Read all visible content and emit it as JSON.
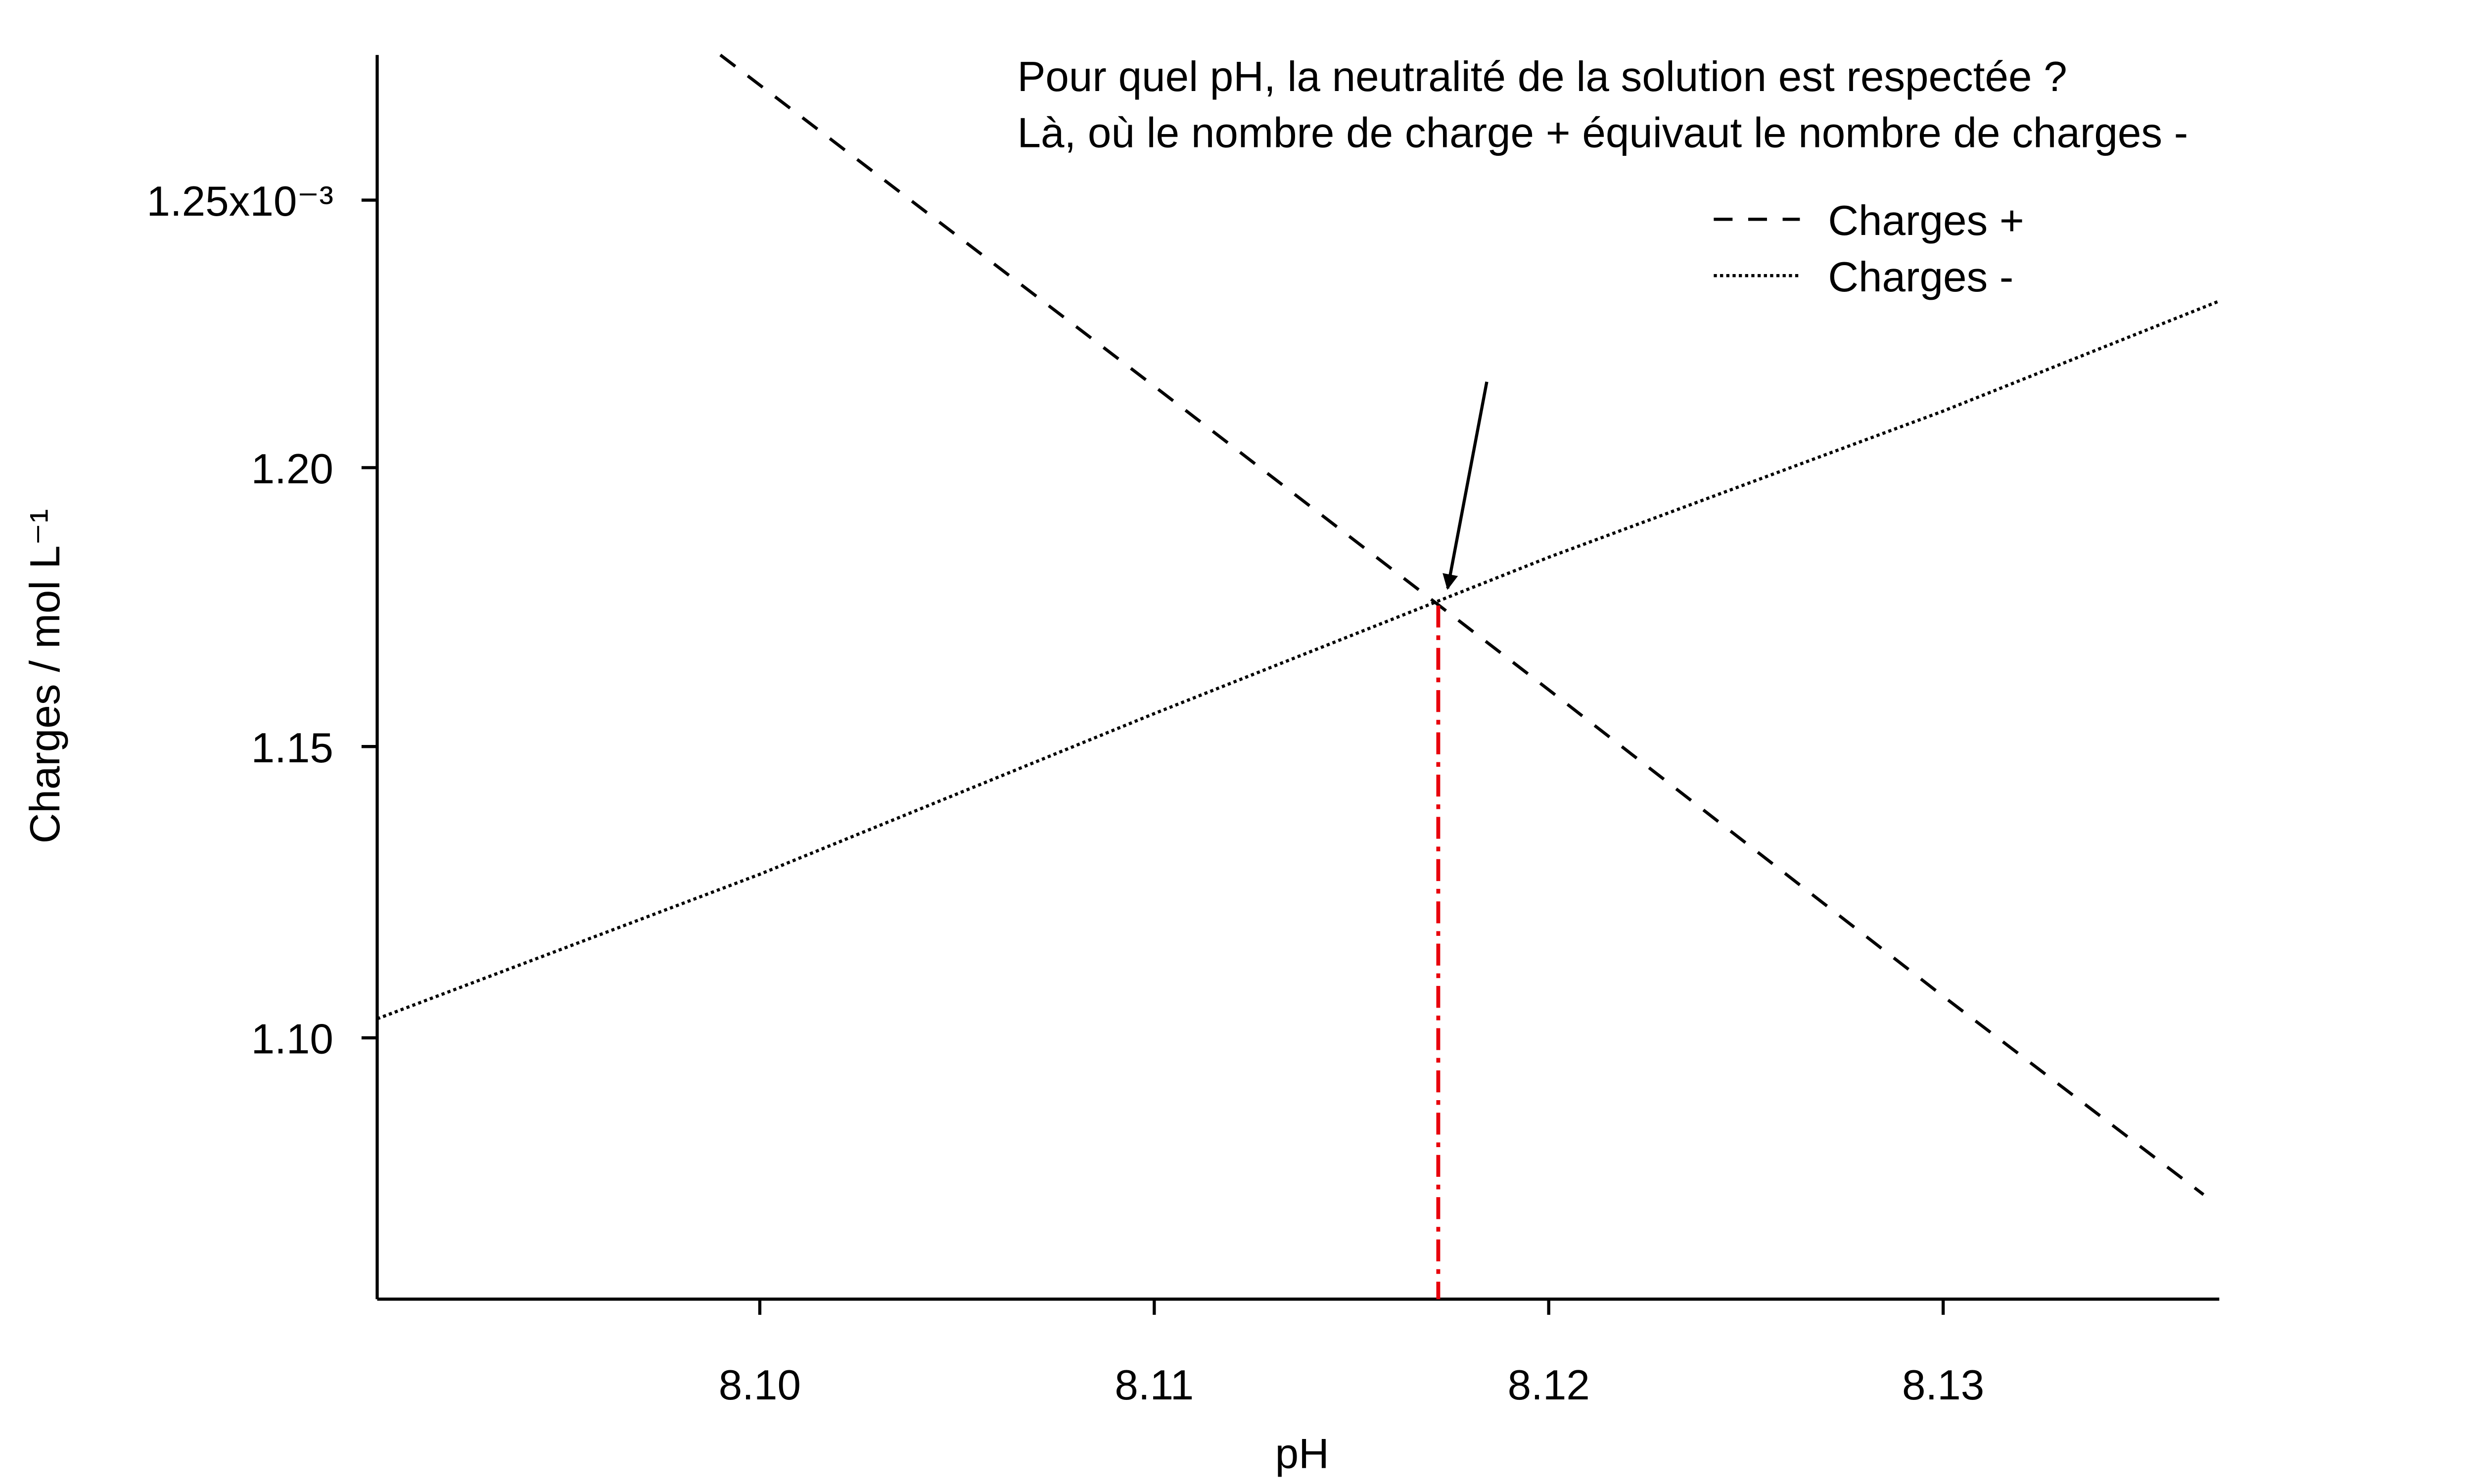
{
  "chart_data": {
    "type": "line",
    "annotations": [
      "Pour quel pH, la neutralité de la solution est respectée ?",
      "Là, où le nombre de charge + équivaut le nombre de charges -"
    ],
    "x_label": "pH",
    "y_label": "Charges / mol L⁻¹",
    "xlim": [
      8.0903,
      8.137
    ],
    "xticks": [
      {
        "value": 8.1,
        "label": "8.10"
      },
      8.11,
      8.12,
      8.13
    ],
    "ylim": [
      0.001057,
      0.001278
    ],
    "ylog": true,
    "yticks": [
      {
        "value": 0.0011,
        "label": "1.10"
      },
      {
        "value": 0.00115,
        "label": "1.15"
      },
      {
        "value": 0.0012,
        "label": "1.20"
      },
      {
        "value": 0.00125,
        "label": "1.25x10⁻³"
      }
    ],
    "legend": "upper right",
    "series": [
      {
        "name": "Charges +",
        "color": "#000000",
        "dash": "dashed",
        "x": [
          8.099,
          8.11,
          8.12,
          8.13,
          8.1366
        ],
        "values": [
          0.001278,
          0.001215,
          0.00116,
          0.001107,
          0.001074
        ]
      },
      {
        "name": "Charges -",
        "color": "#000000",
        "dash": "dotted",
        "x": [
          8.0903,
          8.1,
          8.11,
          8.12,
          8.13,
          8.137
        ],
        "values": [
          0.0011032,
          0.0011278,
          0.0011558,
          0.0011837,
          0.0012104,
          0.0012309
        ]
      }
    ],
    "marker": {
      "x": 8.1172,
      "y": 0.001175,
      "color": "#e8000b"
    }
  }
}
